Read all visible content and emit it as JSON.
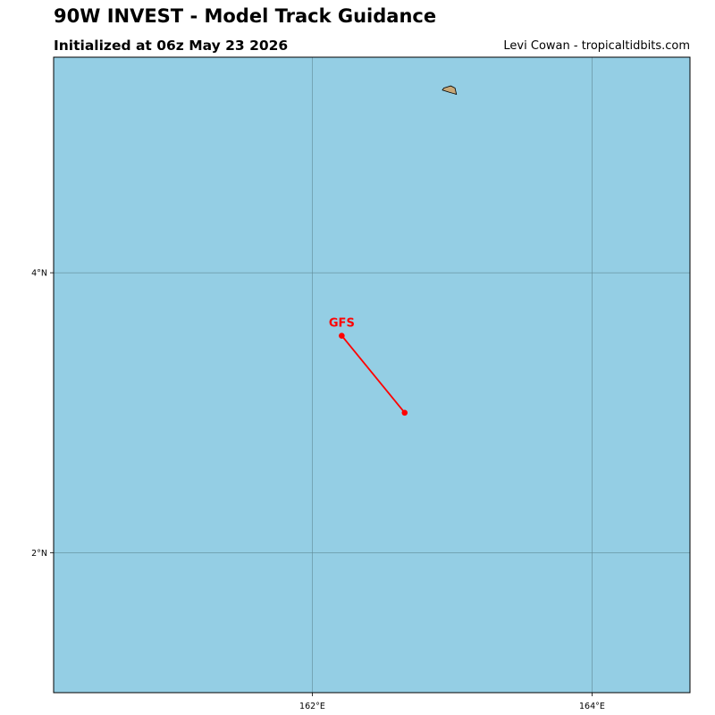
{
  "header": {
    "title": "90W INVEST - Model Track Guidance",
    "subtitle": "Initialized at 06z May 23 2026",
    "credit": "Levi Cowan - tropicaltidbits.com"
  },
  "map": {
    "ocean_color": "#94cee4",
    "land_color": "#c8a878",
    "gridline_color": "#5f8a96",
    "lon_range": [
      160.15,
      164.7
    ],
    "lat_range": [
      1.0,
      5.54
    ],
    "lon_gridlines": [
      {
        "value": 162,
        "label": "162°E"
      },
      {
        "value": 164,
        "label": "164°E"
      }
    ],
    "lat_gridlines": [
      {
        "value": 4,
        "label": "4°N"
      },
      {
        "value": 2,
        "label": "2°N"
      }
    ],
    "island": {
      "points": [
        [
          162.94,
          5.32
        ],
        [
          162.99,
          5.335
        ],
        [
          163.02,
          5.32
        ],
        [
          163.03,
          5.275
        ],
        [
          162.98,
          5.29
        ],
        [
          162.93,
          5.305
        ]
      ]
    }
  },
  "tracks": [
    {
      "name": "GFS",
      "color": "#ff0000",
      "points": [
        {
          "lon": 162.21,
          "lat": 3.55
        },
        {
          "lon": 162.66,
          "lat": 3.0
        }
      ]
    }
  ]
}
